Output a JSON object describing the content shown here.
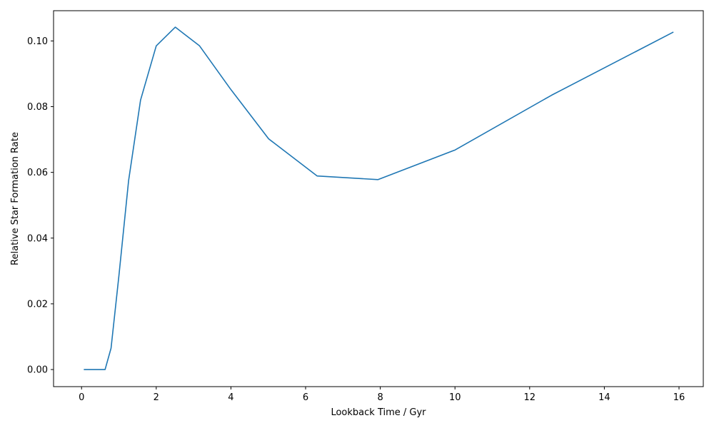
{
  "chart_data": {
    "type": "line",
    "xlabel": "Lookback Time / Gyr",
    "ylabel": "Relative Star Formation Rate",
    "xlim": [
      -0.75,
      16.65
    ],
    "ylim": [
      -0.0052,
      0.1092
    ],
    "xticks": [
      0,
      2,
      4,
      6,
      8,
      10,
      12,
      14,
      16
    ],
    "xtick_labels": [
      "0",
      "2",
      "4",
      "6",
      "8",
      "10",
      "12",
      "14",
      "16"
    ],
    "yticks": [
      0.0,
      0.02,
      0.04,
      0.06,
      0.08,
      0.1
    ],
    "ytick_labels": [
      "0.00",
      "0.02",
      "0.04",
      "0.06",
      "0.08",
      "0.10"
    ],
    "grid": false,
    "series": [
      {
        "color": "#1f77b4",
        "x": [
          0.06,
          0.63,
          0.79,
          1.0,
          1.26,
          1.58,
          2.0,
          2.51,
          3.16,
          3.98,
          5.01,
          6.31,
          7.94,
          10.0,
          12.59,
          15.85
        ],
        "y": [
          0.0,
          0.0,
          0.0065,
          0.0285,
          0.0575,
          0.082,
          0.0985,
          0.1042,
          0.0985,
          0.0855,
          0.0702,
          0.0589,
          0.0578,
          0.0668,
          0.0835,
          0.1027
        ]
      }
    ]
  }
}
